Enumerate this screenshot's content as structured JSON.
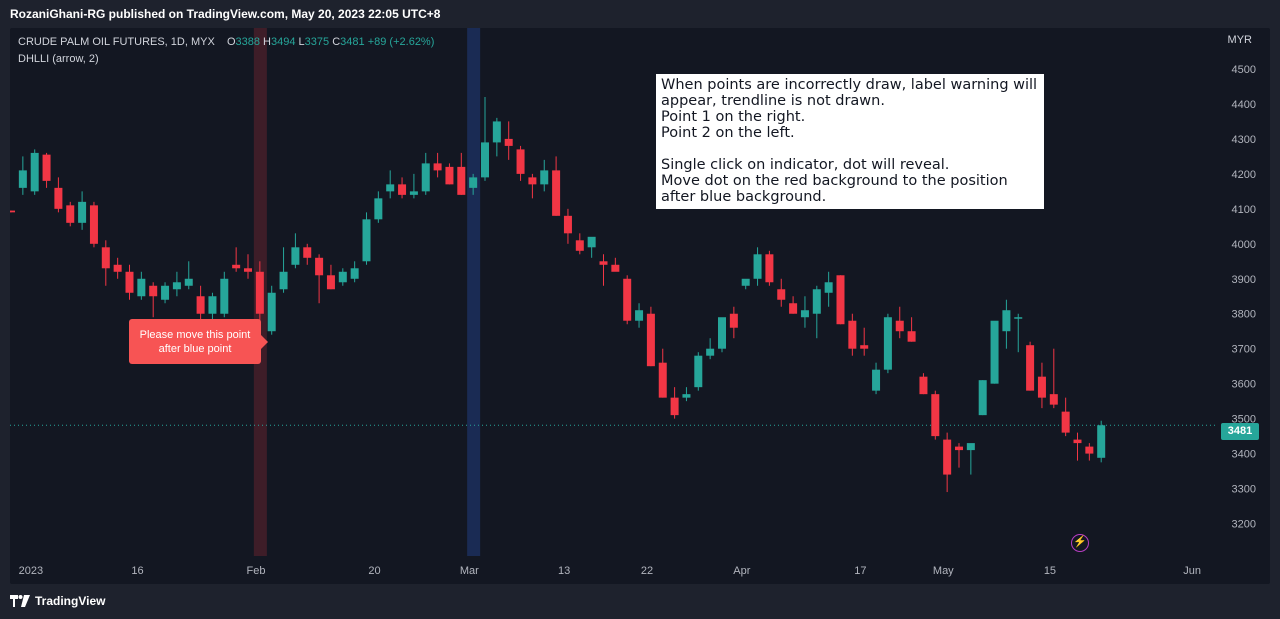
{
  "header": {
    "publisher": "RozaniGhani-RG published on TradingView.com, May 20, 2023 22:05 UTC+8"
  },
  "legend": {
    "symbol": "CRUDE PALM OIL FUTURES, 1D, MYX",
    "o_label": "O",
    "o_value": "3388",
    "h_label": "H",
    "h_value": "3494",
    "l_label": "L",
    "l_value": "3375",
    "c_label": "C",
    "c_value": "3481",
    "change": "+89 (+2.62%)",
    "indicator": "DHLLI (arrow, 2)"
  },
  "currency": "MYR",
  "note": {
    "lines": [
      "When points are incorrectly draw, label warning will",
      "appear, trendline is not drawn.",
      "Point 1 on the right.",
      "Point 2 on the left.",
      "",
      "Single click on indicator, dot will reveal.",
      "Move dot on the red background to the position",
      "after blue background."
    ]
  },
  "warning": {
    "line1": "Please move this point",
    "line2": "after blue point"
  },
  "price_badge": "3481",
  "footer": {
    "brand": "TradingView"
  },
  "colors": {
    "up": "#26a69a",
    "down": "#f23645",
    "red_bg": "#4a1f2a",
    "blue_bg": "#1c2e5a",
    "accent_icon": "#b63dc2"
  },
  "chart_data": {
    "type": "candlestick",
    "y_axis_ticks": [
      3200,
      3300,
      3400,
      3500,
      3600,
      3700,
      3800,
      3900,
      4000,
      4100,
      4200,
      4300,
      4400,
      4500
    ],
    "ylim": [
      3130,
      4560
    ],
    "x_axis_labels": [
      {
        "label": "2023",
        "index": 1
      },
      {
        "label": "16",
        "index": 10
      },
      {
        "label": "Feb",
        "index": 20
      },
      {
        "label": "20",
        "index": 30
      },
      {
        "label": "Mar",
        "index": 38
      },
      {
        "label": "13",
        "index": 46
      },
      {
        "label": "22",
        "index": 53
      },
      {
        "label": "Apr",
        "index": 61
      },
      {
        "label": "17",
        "index": 71
      },
      {
        "label": "May",
        "index": 78
      },
      {
        "label": "15",
        "index": 87
      },
      {
        "label": "Jun",
        "index": 99
      }
    ],
    "last_price": 3481,
    "highlight_red_index": 21,
    "highlight_blue_index": 39,
    "candles": [
      [
        4095,
        4095,
        4090,
        4090
      ],
      [
        4160,
        4250,
        4140,
        4210
      ],
      [
        4150,
        4270,
        4140,
        4260
      ],
      [
        4255,
        4260,
        4160,
        4180
      ],
      [
        4160,
        4190,
        4090,
        4100
      ],
      [
        4110,
        4120,
        4050,
        4060
      ],
      [
        4060,
        4150,
        4040,
        4120
      ],
      [
        4110,
        4120,
        3990,
        4000
      ],
      [
        3990,
        4010,
        3880,
        3930
      ],
      [
        3940,
        3960,
        3900,
        3920
      ],
      [
        3920,
        3940,
        3840,
        3860
      ],
      [
        3850,
        3920,
        3840,
        3900
      ],
      [
        3880,
        3890,
        3790,
        3850
      ],
      [
        3840,
        3890,
        3830,
        3880
      ],
      [
        3870,
        3920,
        3850,
        3890
      ],
      [
        3880,
        3950,
        3870,
        3900
      ],
      [
        3850,
        3880,
        3760,
        3800
      ],
      [
        3800,
        3860,
        3780,
        3850
      ],
      [
        3800,
        3920,
        3790,
        3900
      ],
      [
        3940,
        3990,
        3920,
        3930
      ],
      [
        3930,
        3970,
        3900,
        3920
      ],
      [
        3920,
        3950,
        3760,
        3800
      ],
      [
        3750,
        3880,
        3740,
        3860
      ],
      [
        3870,
        3990,
        3860,
        3920
      ],
      [
        3940,
        4030,
        3930,
        3990
      ],
      [
        3990,
        4000,
        3940,
        3960
      ],
      [
        3960,
        3970,
        3830,
        3910
      ],
      [
        3910,
        3940,
        3870,
        3870
      ],
      [
        3890,
        3930,
        3880,
        3920
      ],
      [
        3900,
        3950,
        3890,
        3930
      ],
      [
        3950,
        4090,
        3940,
        4070
      ],
      [
        4070,
        4150,
        4060,
        4130
      ],
      [
        4150,
        4210,
        4130,
        4170
      ],
      [
        4170,
        4190,
        4130,
        4140
      ],
      [
        4140,
        4200,
        4130,
        4150
      ],
      [
        4150,
        4260,
        4140,
        4230
      ],
      [
        4230,
        4260,
        4190,
        4210
      ],
      [
        4220,
        4230,
        4170,
        4170
      ],
      [
        4220,
        4260,
        4140,
        4140
      ],
      [
        4160,
        4200,
        4140,
        4190
      ],
      [
        4190,
        4420,
        4180,
        4290
      ],
      [
        4290,
        4360,
        4250,
        4350
      ],
      [
        4300,
        4350,
        4240,
        4280
      ],
      [
        4270,
        4280,
        4180,
        4200
      ],
      [
        4190,
        4200,
        4130,
        4170
      ],
      [
        4170,
        4240,
        4150,
        4210
      ],
      [
        4210,
        4250,
        4080,
        4080
      ],
      [
        4080,
        4100,
        4000,
        4030
      ],
      [
        4010,
        4030,
        3970,
        3980
      ],
      [
        3990,
        4010,
        3960,
        4020
      ],
      [
        3950,
        3970,
        3880,
        3940
      ],
      [
        3940,
        3960,
        3930,
        3920
      ],
      [
        3900,
        3910,
        3770,
        3780
      ],
      [
        3780,
        3830,
        3760,
        3810
      ],
      [
        3800,
        3820,
        3650,
        3650
      ],
      [
        3660,
        3700,
        3560,
        3560
      ],
      [
        3560,
        3590,
        3500,
        3510
      ],
      [
        3560,
        3590,
        3550,
        3570
      ],
      [
        3590,
        3690,
        3580,
        3680
      ],
      [
        3680,
        3730,
        3670,
        3700
      ],
      [
        3700,
        3780,
        3690,
        3790
      ],
      [
        3800,
        3820,
        3730,
        3760
      ],
      [
        3880,
        3890,
        3870,
        3900
      ],
      [
        3900,
        3990,
        3880,
        3970
      ],
      [
        3970,
        3980,
        3880,
        3890
      ],
      [
        3870,
        3900,
        3820,
        3840
      ],
      [
        3830,
        3850,
        3800,
        3800
      ],
      [
        3790,
        3850,
        3760,
        3810
      ],
      [
        3800,
        3880,
        3730,
        3870
      ],
      [
        3860,
        3920,
        3820,
        3890
      ],
      [
        3910,
        3910,
        3770,
        3770
      ],
      [
        3780,
        3800,
        3680,
        3700
      ],
      [
        3710,
        3760,
        3680,
        3700
      ],
      [
        3580,
        3660,
        3570,
        3640
      ],
      [
        3640,
        3800,
        3630,
        3790
      ],
      [
        3780,
        3820,
        3730,
        3750
      ],
      [
        3750,
        3790,
        3720,
        3720
      ],
      [
        3620,
        3630,
        3570,
        3570
      ],
      [
        3570,
        3580,
        3440,
        3450
      ],
      [
        3440,
        3460,
        3290,
        3340
      ],
      [
        3420,
        3430,
        3360,
        3410
      ],
      [
        3410,
        3420,
        3340,
        3430
      ],
      [
        3510,
        3610,
        3510,
        3610
      ],
      [
        3600,
        3770,
        3600,
        3780
      ],
      [
        3750,
        3840,
        3700,
        3810
      ],
      [
        3790,
        3800,
        3690,
        3790
      ],
      [
        3710,
        3720,
        3580,
        3580
      ],
      [
        3620,
        3660,
        3530,
        3560
      ],
      [
        3570,
        3700,
        3530,
        3540
      ],
      [
        3520,
        3560,
        3450,
        3460
      ],
      [
        3440,
        3460,
        3380,
        3430
      ],
      [
        3420,
        3430,
        3380,
        3400
      ],
      [
        3388,
        3494,
        3375,
        3481
      ]
    ]
  }
}
